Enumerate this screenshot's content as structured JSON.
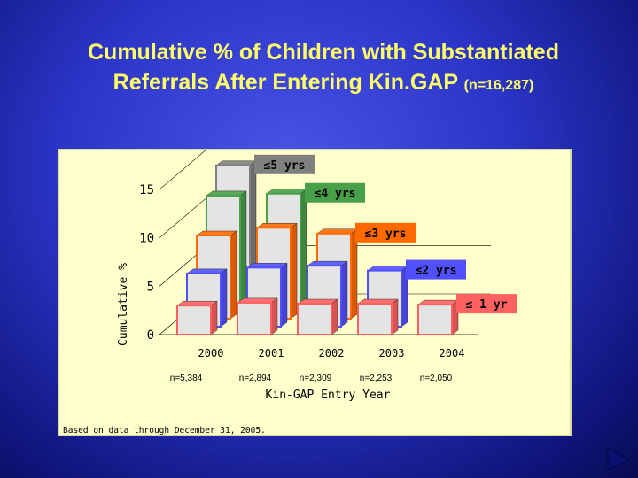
{
  "slide": {
    "title_line1": "Cumulative % of Children with Substantiated",
    "title_line2": "Referrals After Entering Kin.GAP ",
    "title_n": "(n=16,287)"
  },
  "chart_data": {
    "type": "bar",
    "subtype": "3d-stacked-depth",
    "ylabel": "Cumulative %",
    "xlabel": "Kin-GAP Entry Year",
    "ylim": [
      0,
      15
    ],
    "yticks": [
      0,
      5,
      10,
      15
    ],
    "categories": [
      "2000",
      "2001",
      "2002",
      "2003",
      "2004"
    ],
    "sample_sizes": [
      "n=5,384",
      "n=2,894",
      "n=2,309",
      "n=2,253",
      "n=2,050"
    ],
    "series": [
      {
        "name": "≤ 1 yr",
        "color": "#ff6060",
        "values": [
          3.0,
          3.3,
          3.2,
          3.2,
          3.1
        ]
      },
      {
        "name": "≤2 yrs",
        "color": "#5050ff",
        "values": [
          5.5,
          6.1,
          6.3,
          5.8,
          null
        ]
      },
      {
        "name": "≤3 yrs",
        "color": "#ff6a00",
        "values": [
          8.6,
          9.4,
          8.8,
          null,
          null
        ]
      },
      {
        "name": "≤4 yrs",
        "color": "#48a048",
        "values": [
          11.9,
          12.1,
          null,
          null,
          null
        ]
      },
      {
        "name": "≤5 yrs",
        "color": "#808080",
        "values": [
          14.2,
          null,
          null,
          null,
          null
        ]
      }
    ],
    "grid": true,
    "legend": "labels on series rows"
  },
  "footnote": "Based on data through December 31, 2005."
}
